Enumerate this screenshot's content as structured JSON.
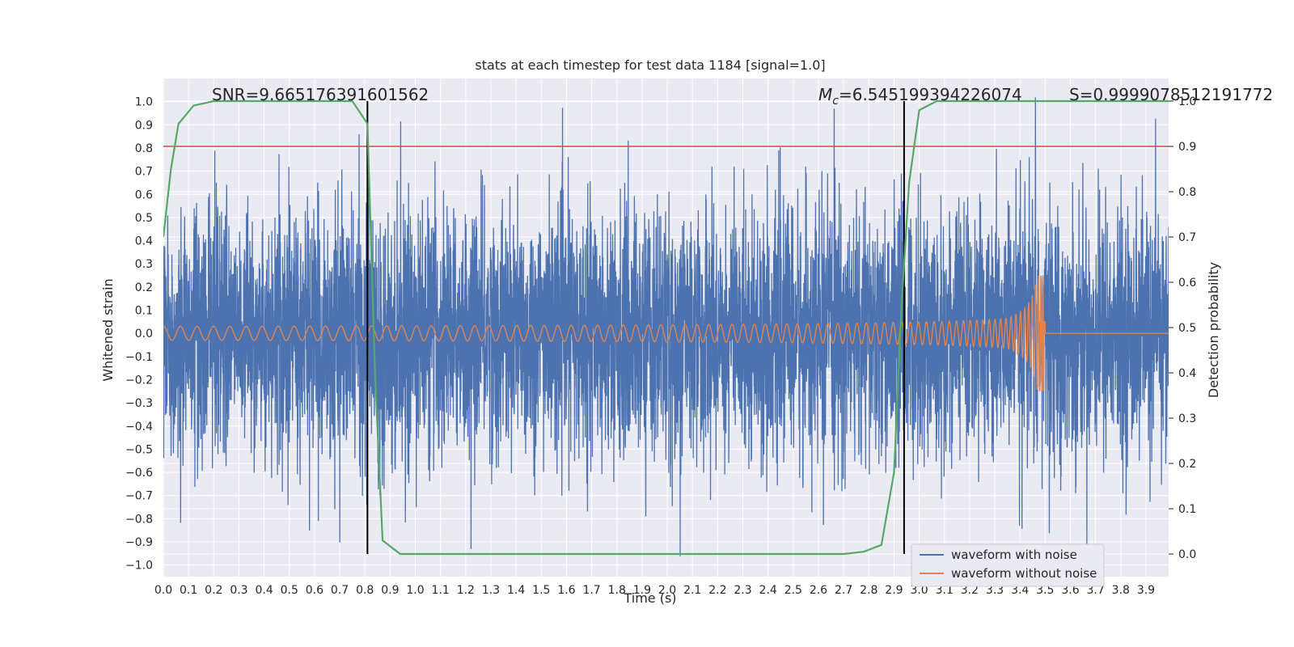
{
  "chart_data": {
    "type": "line",
    "title": "stats at each timestep for test data 1184 [signal=1.0]",
    "xlabel": "Time (s)",
    "ylabel_left": "Whitened strain",
    "ylabel_right": "Detection probability",
    "xlim": [
      0.0,
      3.99
    ],
    "ylim_left": [
      -1.05,
      1.1
    ],
    "ylim_right": [
      -0.05,
      1.05
    ],
    "x_ticks": [
      "0.0",
      "0.1",
      "0.2",
      "0.3",
      "0.4",
      "0.5",
      "0.6",
      "0.7",
      "0.8",
      "0.9",
      "1.0",
      "1.1",
      "1.2",
      "1.3",
      "1.4",
      "1.5",
      "1.6",
      "1.7",
      "1.8",
      "1.9",
      "2.0",
      "2.1",
      "2.2",
      "2.3",
      "2.4",
      "2.5",
      "2.6",
      "2.7",
      "2.8",
      "2.9",
      "3.0",
      "3.1",
      "3.2",
      "3.3",
      "3.4",
      "3.5",
      "3.6",
      "3.7",
      "3.8",
      "3.9"
    ],
    "y_ticks_left": [
      "1.0",
      "0.9",
      "0.8",
      "0.7",
      "0.6",
      "0.5",
      "0.4",
      "0.3",
      "0.2",
      "0.1",
      "0.0",
      "−0.1",
      "−0.2",
      "−0.3",
      "−0.4",
      "−0.5",
      "−0.6",
      "−0.7",
      "−0.8",
      "−0.9",
      "−1.0"
    ],
    "y_ticks_right": [
      "1.0",
      "0.9",
      "0.8",
      "0.7",
      "0.6",
      "0.5",
      "0.4",
      "0.3",
      "0.2",
      "0.1",
      "0.0"
    ],
    "grid": true,
    "annotations": {
      "snr": "SNR=9.665176391601562",
      "mc_symbol": "M",
      "mc_sub": "c",
      "mc_value": "=6.545199394226074",
      "s": "S=0.9999078512191772"
    },
    "threshold_right": 0.9,
    "vertical_markers_x": [
      0.81,
      2.94
    ],
    "series": [
      {
        "name": "waveform with noise",
        "color": "#4c72b0",
        "axis": "left",
        "peak_abs_approx": 1.0
      },
      {
        "name": "waveform without noise",
        "color": "#dd8452",
        "axis": "left",
        "chirp_end_x": 3.5,
        "amplitude_start": 0.03,
        "amplitude_peak": 0.25
      },
      {
        "name": "detection probability",
        "color": "#55a868",
        "axis": "right",
        "x": [
          0.0,
          0.03,
          0.06,
          0.12,
          0.2,
          0.4,
          0.6,
          0.75,
          0.81,
          0.84,
          0.87,
          0.94,
          1.0,
          1.5,
          2.0,
          2.5,
          2.7,
          2.78,
          2.85,
          2.9,
          2.93,
          2.96,
          3.0,
          3.07,
          3.2,
          3.5,
          3.99
        ],
        "y": [
          0.7,
          0.85,
          0.95,
          0.99,
          1.0,
          1.0,
          1.0,
          1.0,
          0.95,
          0.4,
          0.03,
          0.0,
          0.0,
          0.0,
          0.0,
          0.0,
          0.0,
          0.005,
          0.02,
          0.18,
          0.55,
          0.82,
          0.98,
          1.0,
          1.0,
          1.0,
          1.0
        ]
      }
    ],
    "legend_position": "lower-right",
    "colors": {
      "plot_bg": "#eaeaf2",
      "grid": "#ffffff",
      "noise": "#4c72b0",
      "clean": "#dd8452",
      "prob": "#55a868",
      "threshold": "#c44e52",
      "marker": "#000000"
    }
  }
}
